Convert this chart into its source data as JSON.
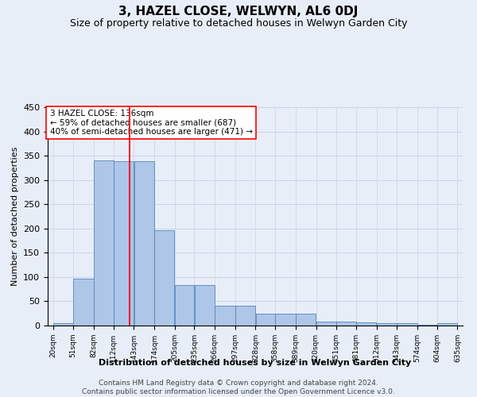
{
  "title": "3, HAZEL CLOSE, WELWYN, AL6 0DJ",
  "subtitle": "Size of property relative to detached houses in Welwyn Garden City",
  "xlabel": "Distribution of detached houses by size in Welwyn Garden City",
  "ylabel": "Number of detached properties",
  "footnote1": "Contains HM Land Registry data © Crown copyright and database right 2024.",
  "footnote2": "Contains public sector information licensed under the Open Government Licence v3.0.",
  "annotation_line1": "3 HAZEL CLOSE: 136sqm",
  "annotation_line2": "← 59% of detached houses are smaller (687)",
  "annotation_line3": "40% of semi-detached houses are larger (471) →",
  "bar_left_edges": [
    20,
    51,
    82,
    112,
    143,
    174,
    205,
    235,
    266,
    297,
    328,
    358,
    389,
    420,
    451,
    481,
    512,
    543,
    574,
    604
  ],
  "bar_widths": [
    31,
    31,
    30,
    31,
    31,
    31,
    30,
    31,
    31,
    31,
    30,
    31,
    31,
    31,
    30,
    31,
    31,
    31,
    30,
    31
  ],
  "bar_heights": [
    5,
    97,
    340,
    338,
    338,
    197,
    84,
    84,
    41,
    41,
    25,
    24,
    24,
    9,
    9,
    6,
    5,
    5,
    2,
    5
  ],
  "tick_labels": [
    "20sqm",
    "51sqm",
    "82sqm",
    "112sqm",
    "143sqm",
    "174sqm",
    "205sqm",
    "235sqm",
    "266sqm",
    "297sqm",
    "328sqm",
    "358sqm",
    "389sqm",
    "420sqm",
    "451sqm",
    "481sqm",
    "512sqm",
    "543sqm",
    "574sqm",
    "604sqm",
    "635sqm"
  ],
  "bar_color": "#aec6e8",
  "bar_edge_color": "#5588bb",
  "red_line_x": 136,
  "ylim": [
    0,
    450
  ],
  "yticks": [
    0,
    50,
    100,
    150,
    200,
    250,
    300,
    350,
    400,
    450
  ],
  "grid_color": "#c8d4e8",
  "background_color": "#e8eef8",
  "title_fontsize": 11,
  "subtitle_fontsize": 9,
  "annotation_fontsize": 7.5,
  "ylabel_fontsize": 8,
  "xlabel_fontsize": 8,
  "footer_fontsize": 6.5,
  "tick_fontsize": 6.5,
  "ytick_fontsize": 8
}
